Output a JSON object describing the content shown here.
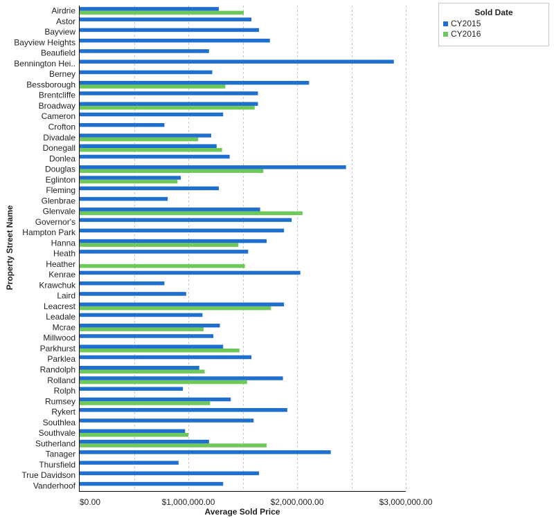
{
  "chart_data": {
    "type": "bar",
    "orientation": "horizontal",
    "xlabel": "Average Sold Price",
    "ylabel": "Property Street Name",
    "xlim": [
      0,
      3000000
    ],
    "x_ticks": [
      0,
      1000000,
      2000000,
      3000000
    ],
    "x_tick_labels": [
      "$0.00",
      "$1,000,000.00",
      "$2,000,000.00",
      "$3,000,000.00"
    ],
    "grid": "vertical dashed",
    "legend": {
      "title": "Sold Date",
      "position": "top-right"
    },
    "categories": [
      "Airdrie",
      "Astor",
      "Bayview",
      "Bayview Heights",
      "Beaufield",
      "Bennington Hei..",
      "Berney",
      "Bessborough",
      "Brentcliffe",
      "Broadway",
      "Cameron",
      "Crofton",
      "Divadale",
      "Donegall",
      "Donlea",
      "Douglas",
      "Eglinton",
      "Fleming",
      "Glenbrae",
      "Glenvale",
      "Governor's",
      "Hampton Park",
      "Hanna",
      "Heath",
      "Heather",
      "Kenrae",
      "Krawchuk",
      "Laird",
      "Leacrest",
      "Leadale",
      "Mcrae",
      "Millwood",
      "Parkhurst",
      "Parklea",
      "Randolph",
      "Rolland",
      "Rolph",
      "Rumsey",
      "Rykert",
      "Southlea",
      "Southvale",
      "Sutherland",
      "Tanager",
      "Thursfield",
      "True Davidson",
      "Vanderhoof"
    ],
    "series": [
      {
        "name": "CY2015",
        "color": "#1f6fce",
        "values": [
          1280000,
          1580000,
          1650000,
          1750000,
          1190000,
          2890000,
          1220000,
          2110000,
          1640000,
          1640000,
          1320000,
          780000,
          1210000,
          1260000,
          1380000,
          2450000,
          930000,
          1280000,
          810000,
          1660000,
          1950000,
          1880000,
          1720000,
          1550000,
          null,
          2030000,
          780000,
          980000,
          1880000,
          1130000,
          1290000,
          1230000,
          1320000,
          1580000,
          1100000,
          1870000,
          950000,
          1390000,
          1910000,
          1600000,
          970000,
          1190000,
          2310000,
          910000,
          1650000,
          1320000
        ]
      },
      {
        "name": "CY2016",
        "color": "#6fc95a",
        "values": [
          1510000,
          null,
          null,
          null,
          null,
          null,
          null,
          1340000,
          null,
          1610000,
          null,
          null,
          1090000,
          1310000,
          null,
          1690000,
          900000,
          null,
          null,
          2050000,
          null,
          null,
          1460000,
          null,
          1520000,
          null,
          null,
          null,
          1760000,
          null,
          1140000,
          null,
          1470000,
          null,
          1150000,
          1540000,
          null,
          1200000,
          null,
          null,
          1000000,
          1720000,
          null,
          null,
          null,
          null
        ]
      }
    ]
  }
}
